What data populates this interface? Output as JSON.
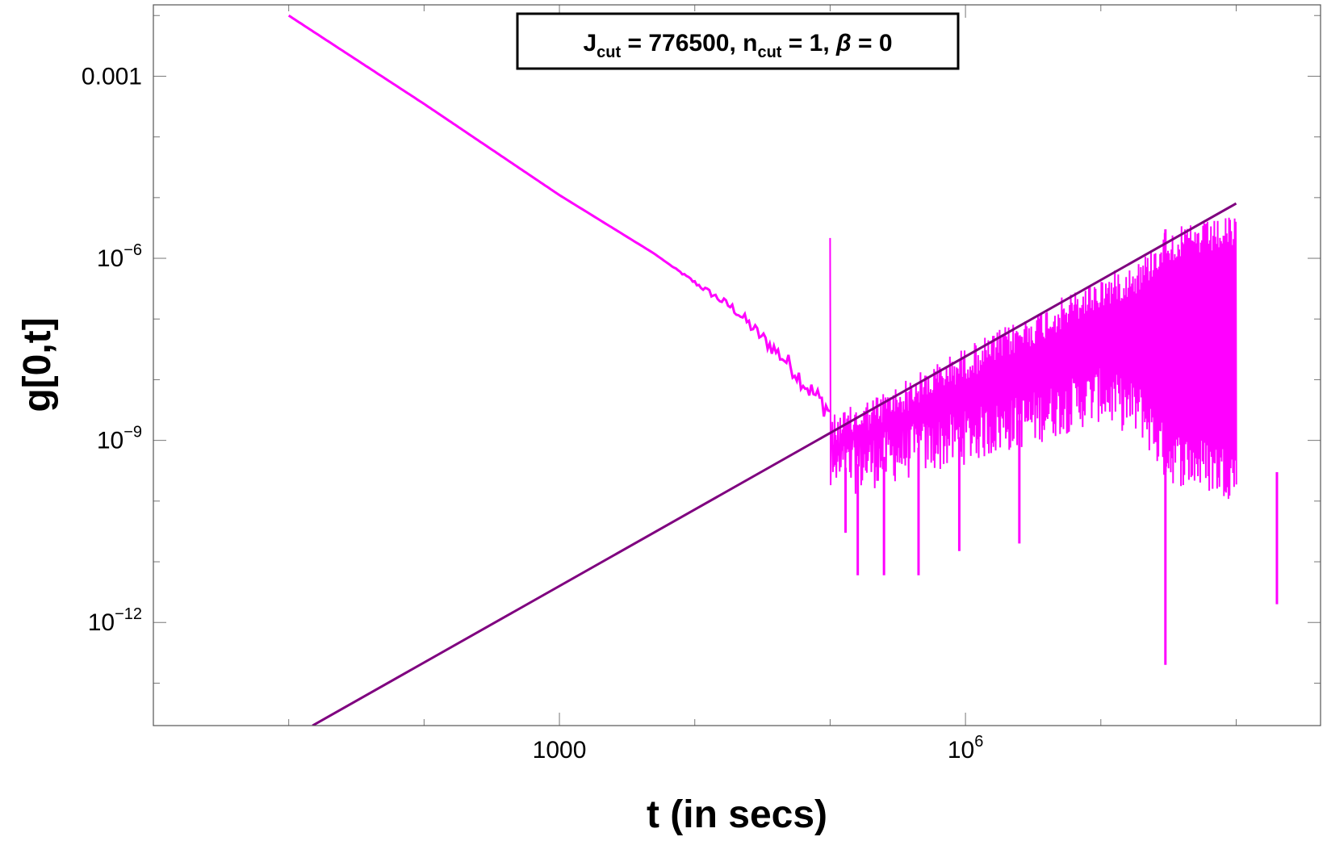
{
  "chart_data": {
    "type": "line",
    "title_parts": {
      "j": "J",
      "j_sub": "cut",
      "j_value": " = 776500, ",
      "n": "n",
      "n_sub": "cut",
      "n_value": " = 1, ",
      "beta": "β",
      "beta_value": " = 0"
    },
    "xlabel": "t (in secs)",
    "ylabel": "g[0,t]",
    "x_scale": "log",
    "y_scale": "log",
    "xlim": [
      1.0,
      420000000.0
    ],
    "ylim": [
      2e-14,
      0.015
    ],
    "x_ticks": [
      {
        "value": 1000,
        "mantissa": "1000",
        "exponent": ""
      },
      {
        "value": 1000000,
        "mantissa": "10",
        "exponent": "6"
      }
    ],
    "y_ticks": [
      {
        "value": 0.001,
        "mantissa": "0.001",
        "exponent": ""
      },
      {
        "value": 1e-06,
        "mantissa": "10",
        "exponent": "−6"
      },
      {
        "value": 1e-09,
        "mantissa": "10",
        "exponent": "−9"
      },
      {
        "value": 1e-12,
        "mantissa": "10",
        "exponent": "−12"
      }
    ],
    "grid": false,
    "legend_position": "top-center",
    "colors": {
      "decay": "#ff00ff",
      "growth": "#7f007f"
    },
    "series": [
      {
        "style": "line",
        "color": "#ff00ff",
        "x": [
          10,
          100,
          1000,
          5000,
          10000,
          20000,
          30000,
          50000,
          70000,
          100000
        ],
        "y": [
          0.01,
          0.00035,
          1.1e-05,
          1.2e-06,
          4e-07,
          1.4e-07,
          5.5e-08,
          1.8e-08,
          7e-09,
          3e-09
        ]
      },
      {
        "style": "line",
        "color": "#7f007f",
        "x": [
          15,
          100000000.0
        ],
        "y": [
          2e-14,
          8e-06
        ]
      },
      {
        "style": "noise-band",
        "color": "#ff00ff",
        "x": [
          100000,
          300000,
          1000000,
          3000000,
          10000000,
          20000000,
          30000000,
          100000000
        ],
        "upper": [
          2.5e-09,
          8e-09,
          3.5e-08,
          1.2e-07,
          5e-07,
          1e-06,
          3e-06,
          5e-06
        ],
        "lower": [
          1e-10,
          2e-10,
          4e-10,
          8e-10,
          2e-09,
          1e-09,
          2e-10,
          1e-10
        ],
        "spikes": [
          {
            "x": 130000,
            "y": 3e-11
          },
          {
            "x": 160000,
            "y": 6e-12
          },
          {
            "x": 250000,
            "y": 6e-12
          },
          {
            "x": 450000,
            "y": 6e-12
          },
          {
            "x": 900000,
            "y": 1.5e-11
          },
          {
            "x": 2500000,
            "y": 2e-11
          },
          {
            "x": 30000000,
            "y": 2e-13
          },
          {
            "x": 200000000,
            "y": 2e-12
          }
        ],
        "break_x": 30000000
      }
    ]
  }
}
